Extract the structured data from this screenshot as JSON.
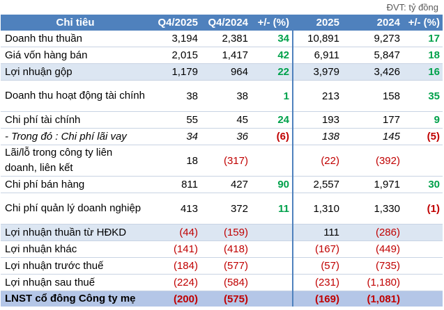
{
  "unit_note": "ĐVT: tỷ đồng",
  "header": {
    "label": "Chỉ tiêu",
    "q4_2025": "Q4/2025",
    "q4_2024": "Q4/2024",
    "pct_q": "+/- (%)",
    "y2025": "2025",
    "y2024": "2024",
    "pct_y": "+/- (%)"
  },
  "rows": [
    {
      "label": "Doanh thu thuần",
      "q4_2025": "3,194",
      "q4_2024": "2,381",
      "pct_q": "34",
      "y2025": "10,891",
      "y2024": "9,273",
      "pct_y": "17"
    },
    {
      "label": "Giá vốn hàng bán",
      "q4_2025": "2,015",
      "q4_2024": "1,417",
      "pct_q": "42",
      "y2025": "6,911",
      "y2024": "5,847",
      "pct_y": "18"
    },
    {
      "label": "Lợi nhuận gộp",
      "q4_2025": "1,179",
      "q4_2024": "964",
      "pct_q": "22",
      "y2025": "3,979",
      "y2024": "3,426",
      "pct_y": "16"
    },
    {
      "label": "Doanh thu hoạt động tài chính",
      "q4_2025": "38",
      "q4_2024": "38",
      "pct_q": "1",
      "y2025": "213",
      "y2024": "158",
      "pct_y": "35"
    },
    {
      "label": "Chi phí tài chính",
      "q4_2025": "55",
      "q4_2024": "45",
      "pct_q": "24",
      "y2025": "193",
      "y2024": "177",
      "pct_y": "9"
    },
    {
      "label": "- Trong đó : Chi phí lãi vay",
      "q4_2025": "34",
      "q4_2024": "36",
      "pct_q": "(6)",
      "y2025": "138",
      "y2024": "145",
      "pct_y": "(5)"
    },
    {
      "label": "Lãi/lỗ trong công ty liên doanh, liên kết",
      "q4_2025": "18",
      "q4_2024": "(317)",
      "pct_q": "",
      "y2025": "(22)",
      "y2024": "(392)",
      "pct_y": ""
    },
    {
      "label": "Chi phí bán hàng",
      "q4_2025": "811",
      "q4_2024": "427",
      "pct_q": "90",
      "y2025": "2,557",
      "y2024": "1,971",
      "pct_y": "30"
    },
    {
      "label": "Chi phí quản lý doanh nghiệp",
      "q4_2025": "413",
      "q4_2024": "372",
      "pct_q": "11",
      "y2025": "1,310",
      "y2024": "1,330",
      "pct_y": "(1)"
    },
    {
      "label": "Lợi nhuận thuần từ HĐKD",
      "q4_2025": "(44)",
      "q4_2024": "(159)",
      "pct_q": "",
      "y2025": "111",
      "y2024": "(286)",
      "pct_y": ""
    },
    {
      "label": "Lợi nhuận khác",
      "q4_2025": "(141)",
      "q4_2024": "(418)",
      "pct_q": "",
      "y2025": "(167)",
      "y2024": "(449)",
      "pct_y": ""
    },
    {
      "label": "Lợi nhuận trước thuế",
      "q4_2025": "(184)",
      "q4_2024": "(577)",
      "pct_q": "",
      "y2025": "(57)",
      "y2024": "(735)",
      "pct_y": ""
    },
    {
      "label": "Lợi nhuận sau thuế",
      "q4_2025": "(224)",
      "q4_2024": "(584)",
      "pct_q": "",
      "y2025": "(231)",
      "y2024": "(1,180)",
      "pct_y": ""
    },
    {
      "label": "LNST cổ đông Công ty mẹ",
      "q4_2025": "(200)",
      "q4_2024": "(575)",
      "pct_q": "",
      "y2025": "(169)",
      "y2024": "(1,081)",
      "pct_y": ""
    }
  ],
  "colors": {
    "header_bg": "#4f81bd",
    "highlight_bg": "#dce6f2",
    "total_bg": "#b4c6e7",
    "positive": "#00a14b",
    "negative": "#c00000"
  }
}
